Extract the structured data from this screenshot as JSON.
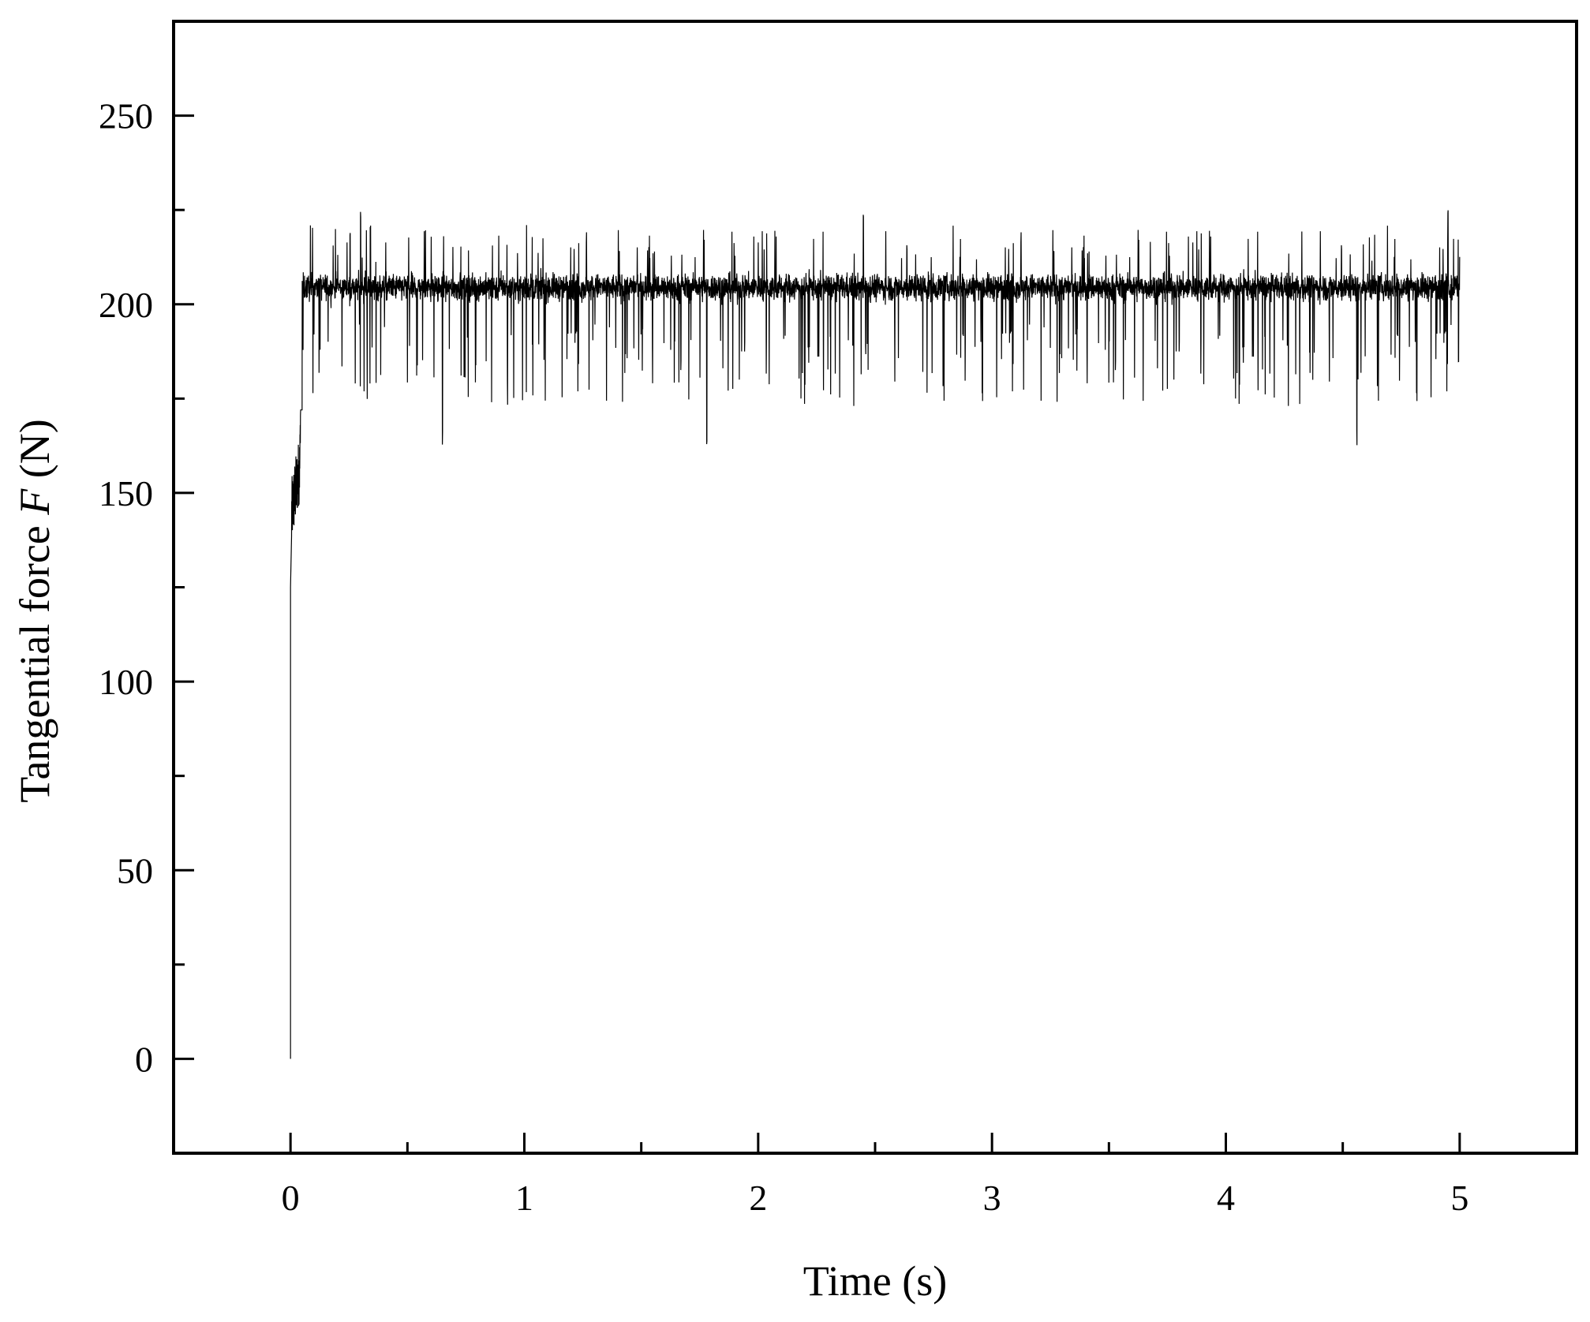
{
  "chart_data": {
    "type": "line",
    "xlabel": "Time (s)",
    "ylabel": {
      "prefix": "Tangential force ",
      "italic": "F",
      "suffix": " (N)"
    },
    "xlim": [
      -0.5,
      5.5
    ],
    "ylim": [
      -25,
      275
    ],
    "xticks": [
      0,
      1,
      2,
      3,
      4,
      5
    ],
    "xtick_labels": [
      "0",
      "1",
      "2",
      "3",
      "4",
      "5"
    ],
    "xminor_ticks": [
      0.5,
      1.5,
      2.5,
      3.5,
      4.5
    ],
    "yticks": [
      0,
      50,
      100,
      150,
      200,
      250
    ],
    "ytick_labels": [
      "0",
      "50",
      "100",
      "150",
      "200",
      "250"
    ],
    "yminor_ticks": [
      25,
      75,
      125,
      175,
      225
    ],
    "grid": false,
    "legend": "none",
    "series": [
      {
        "color": "#000000",
        "description_points": {
          "x": [
            0,
            0.0,
            0.005,
            0.01,
            0.02,
            0.03,
            0.04,
            0.05,
            0.06,
            0.08,
            0.1,
            0.2,
            0.5,
            1.0,
            1.5,
            2.0,
            2.5,
            3.0,
            3.5,
            4.0,
            4.5,
            5.0
          ],
          "y": [
            0,
            125,
            140,
            150,
            155,
            165,
            160,
            205,
            207,
            206,
            205,
            205,
            204,
            204,
            203,
            204,
            203,
            203,
            203,
            203,
            204,
            200
          ]
        },
        "steady_mean": 203,
        "noise_band": [
          196,
          211
        ],
        "spike_extremes": {
          "max_up": 225,
          "max_down": 162,
          "notable_downspikes_x": [
            0.65,
            1.78,
            4.56
          ],
          "notable_upspikes_x": [
            0.3,
            2.45,
            4.95
          ]
        }
      }
    ]
  }
}
